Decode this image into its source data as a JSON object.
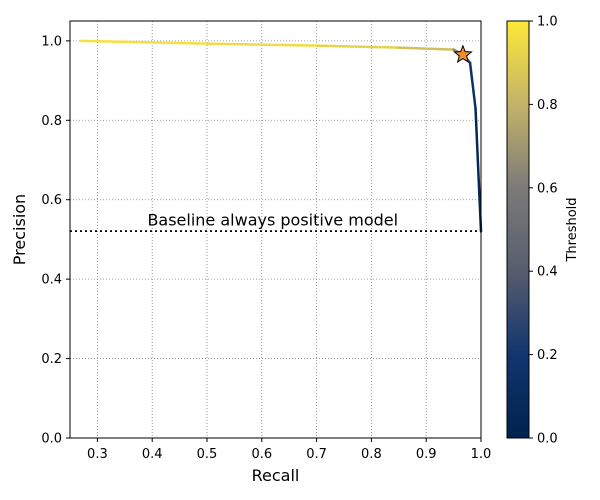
{
  "chart_data": {
    "type": "line",
    "xlabel": "Recall",
    "ylabel": "Precision",
    "xlim": [
      0.25,
      1.0
    ],
    "ylim": [
      0.0,
      1.05
    ],
    "xticks": [
      0.3,
      0.4,
      0.5,
      0.6,
      0.7,
      0.8,
      0.9,
      1.0
    ],
    "xtick_labels": [
      "0.3",
      "0.4",
      "0.5",
      "0.6",
      "0.7",
      "0.8",
      "0.9",
      "1.0"
    ],
    "yticks": [
      0.0,
      0.2,
      0.4,
      0.6,
      0.8,
      1.0
    ],
    "ytick_labels": [
      "0.0",
      "0.2",
      "0.4",
      "0.6",
      "0.8",
      "1.0"
    ],
    "grid": true,
    "series": [
      {
        "color_by": "threshold",
        "colormap": "cividis",
        "points": [
          {
            "x": 0.27,
            "y": 1.0,
            "threshold": 0.98
          },
          {
            "x": 0.5,
            "y": 0.993,
            "threshold": 0.96
          },
          {
            "x": 0.7,
            "y": 0.988,
            "threshold": 0.94
          },
          {
            "x": 0.85,
            "y": 0.983,
            "threshold": 0.9
          },
          {
            "x": 0.95,
            "y": 0.978,
            "threshold": 0.8
          },
          {
            "x": 0.967,
            "y": 0.965,
            "threshold": 0.5
          },
          {
            "x": 0.98,
            "y": 0.945,
            "threshold": 0.2
          },
          {
            "x": 0.99,
            "y": 0.83,
            "threshold": 0.1
          },
          {
            "x": 1.0,
            "y": 0.52,
            "threshold": 0.0
          }
        ]
      }
    ],
    "highlight_point": {
      "x": 0.967,
      "y": 0.965,
      "marker": "star",
      "color": "#f28e2b"
    },
    "baseline": {
      "y": 0.521,
      "label": "Baseline always positive model",
      "label_x": 0.62,
      "label_y": 0.55
    },
    "colorbar": {
      "label": "Threshold",
      "range": [
        0.0,
        1.0
      ],
      "ticks": [
        0.0,
        0.2,
        0.4,
        0.6,
        0.8,
        1.0
      ],
      "tick_labels": [
        "0.0",
        "0.2",
        "0.4",
        "0.6",
        "0.8",
        "1.0"
      ]
    }
  }
}
